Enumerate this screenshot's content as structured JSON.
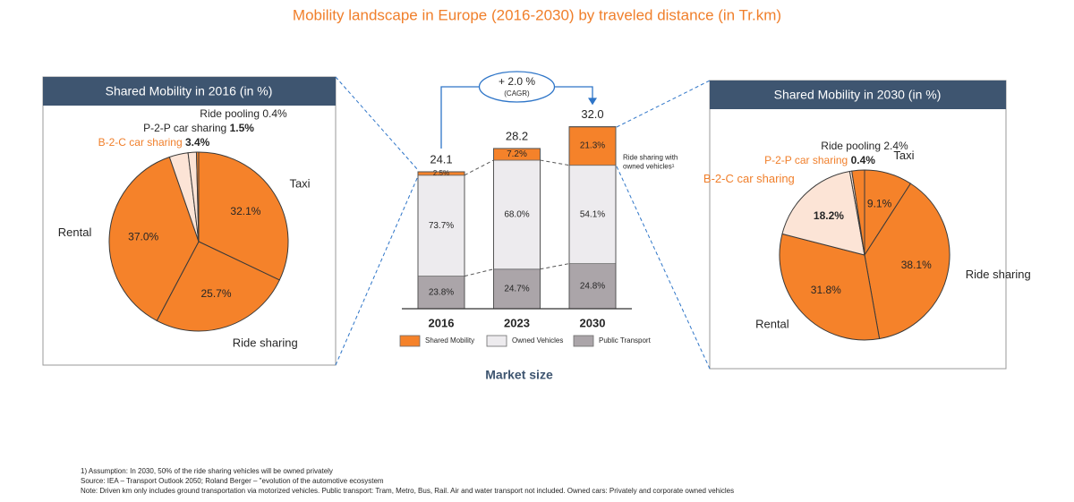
{
  "title": "Mobility landscape in Europe (2016-2030) by traveled distance (in Tr.km)",
  "footnotes": [
    "1)   Assumption: In 2030, 50% of the ride sharing vehicles will be owned privately",
    "Source: IEA – Transport Outlook 2050; Roland Berger – \"evolution of the automotive ecosystem",
    "Note: Driven km only includes ground transportation via motorized vehicles. Public transport: Tram, Metro, Bus, Rail. Air and water transport not included. Owned cars: Privately and corporate owned vehicles"
  ],
  "chart_data": [
    {
      "type": "pie",
      "title": "Shared Mobility in 2016 (in %)",
      "categories": [
        "Taxi",
        "Ride sharing",
        "Rental",
        "B-2-C car sharing",
        "P-2-P car sharing",
        "Ride pooling"
      ],
      "values": [
        32.1,
        25.7,
        37.0,
        3.4,
        1.5,
        0.4
      ],
      "value_labels": [
        "32.1%",
        "25.7%",
        "37.0%",
        "3.4%",
        "1.5%",
        "0.4%"
      ],
      "colors": [
        "#F5822A",
        "#F5822A",
        "#F5822A",
        "#FCE4D6",
        "#FCE4D6",
        "#F5822A"
      ]
    },
    {
      "type": "bar",
      "stacked": true,
      "categories": [
        "2016",
        "2023",
        "2030"
      ],
      "values": [
        24.1,
        28.2,
        32.0
      ],
      "value_labels": [
        "24.1",
        "28.2",
        "32.0"
      ],
      "series": [
        {
          "name": "Public Transport",
          "color": "#ABA5A9",
          "values": [
            23.8,
            24.7,
            24.8
          ],
          "value_labels": [
            "23.8%",
            "24.7%",
            "24.8%"
          ]
        },
        {
          "name": "Owned Vehicles",
          "color": "#EDEBEE",
          "values": [
            73.7,
            68.0,
            54.1
          ],
          "value_labels": [
            "73.7%",
            "68.0%",
            "54.1%"
          ]
        },
        {
          "name": "Shared Mobility",
          "color": "#F5822A",
          "values": [
            2.5,
            7.2,
            21.3
          ],
          "value_labels": [
            "2.5%",
            "7.2%",
            "21.3%"
          ]
        }
      ],
      "growth": "+ 2.0 %",
      "growth_note": "(CAGR)",
      "annotation": [
        "Ride sharing with",
        "owned vehicles¹"
      ],
      "xlabel": "Market size"
    },
    {
      "type": "pie",
      "title": "Shared Mobility in 2030 (in %)",
      "categories": [
        "Taxi",
        "Ride sharing",
        "Rental",
        "B-2-C car sharing",
        "P-2-P car sharing",
        "Ride pooling"
      ],
      "values": [
        9.1,
        38.1,
        31.8,
        18.2,
        0.4,
        2.4
      ],
      "value_labels": [
        "9.1%",
        "38.1%",
        "31.8%",
        "18.2%",
        "0.4%",
        "2.4%"
      ],
      "colors": [
        "#F5822A",
        "#F5822A",
        "#F5822A",
        "#FCE4D6",
        "#FCE4D6",
        "#F5822A"
      ]
    }
  ]
}
